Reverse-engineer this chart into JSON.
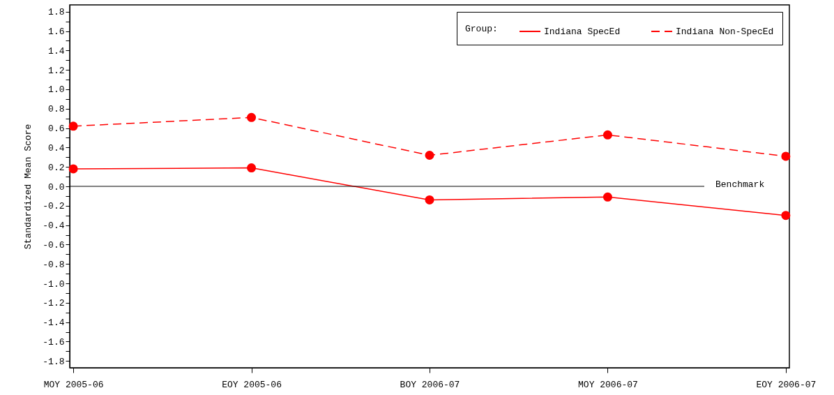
{
  "chart_data": {
    "type": "line",
    "ylabel": "Standardized Mean Score",
    "legend_title": "Group:",
    "categories": [
      "MOY 2005-06",
      "EOY 2005-06",
      "BOY 2006-07",
      "MOY 2006-07",
      "EOY 2006-07"
    ],
    "series": [
      {
        "name": "Indiana SpecEd",
        "color": "#ff0000",
        "line_style": "solid",
        "values": [
          0.18,
          0.19,
          -0.14,
          -0.11,
          -0.3
        ]
      },
      {
        "name": "Indiana Non-SpecEd",
        "color": "#ff0000",
        "line_style": "dashed",
        "values": [
          0.62,
          0.71,
          0.32,
          0.53,
          0.31
        ]
      }
    ],
    "ylim": [
      -1.87,
      1.87
    ],
    "yticks": [
      {
        "value": -1.8,
        "label": "-1.8"
      },
      {
        "value": -1.7,
        "label": null
      },
      {
        "value": -1.6,
        "label": "-1.6"
      },
      {
        "value": -1.5,
        "label": null
      },
      {
        "value": -1.4,
        "label": "-1.4"
      },
      {
        "value": -1.3,
        "label": null
      },
      {
        "value": -1.2,
        "label": "-1.2"
      },
      {
        "value": -1.1,
        "label": null
      },
      {
        "value": -1,
        "label": "-1.0"
      },
      {
        "value": -0.9,
        "label": null
      },
      {
        "value": -0.8,
        "label": "-0.8"
      },
      {
        "value": -0.7,
        "label": null
      },
      {
        "value": -0.6,
        "label": "-0.6"
      },
      {
        "value": -0.5,
        "label": null
      },
      {
        "value": -0.4,
        "label": "-0.4"
      },
      {
        "value": -0.3,
        "label": null
      },
      {
        "value": -0.2,
        "label": "-0.2"
      },
      {
        "value": -0.1,
        "label": null
      },
      {
        "value": 0,
        "label": "0.0"
      },
      {
        "value": 0.1,
        "label": null
      },
      {
        "value": 0.2,
        "label": "0.2"
      },
      {
        "value": 0.3,
        "label": null
      },
      {
        "value": 0.4,
        "label": "0.4"
      },
      {
        "value": 0.5,
        "label": null
      },
      {
        "value": 0.6,
        "label": "0.6"
      },
      {
        "value": 0.7,
        "label": null
      },
      {
        "value": 0.8,
        "label": "0.8"
      },
      {
        "value": 0.9,
        "label": null
      },
      {
        "value": 1,
        "label": "1.0"
      },
      {
        "value": 1.1,
        "label": null
      },
      {
        "value": 1.2,
        "label": "1.2"
      },
      {
        "value": 1.3,
        "label": null
      },
      {
        "value": 1.4,
        "label": "1.4"
      },
      {
        "value": 1.5,
        "label": null
      },
      {
        "value": 1.6,
        "label": "1.6"
      },
      {
        "value": 1.7,
        "label": null
      },
      {
        "value": 1.8,
        "label": "1.8"
      }
    ],
    "ref_lines": [
      {
        "axis": "y",
        "value": 0,
        "label": "Benchmark",
        "color": "#000000"
      }
    ],
    "legend": "top right",
    "marker": "circle",
    "grid": false
  }
}
